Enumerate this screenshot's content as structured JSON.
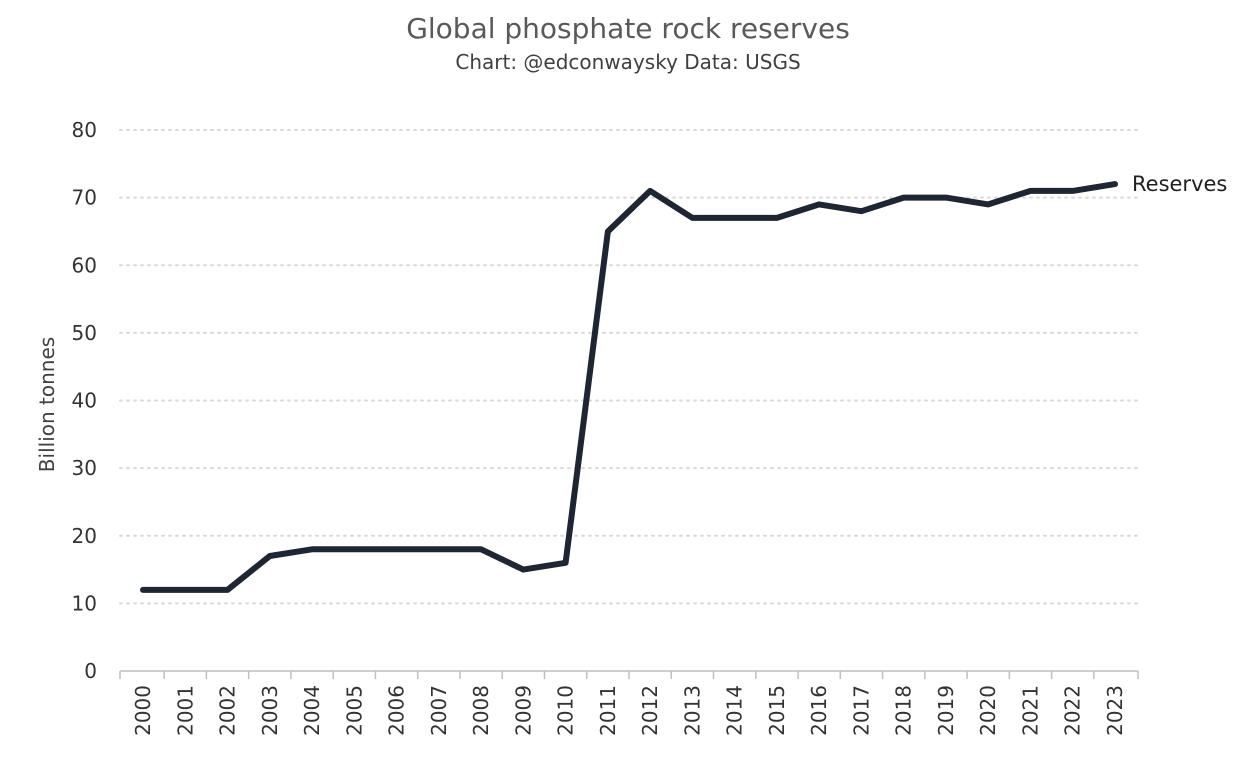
{
  "chart_data": {
    "type": "line",
    "title": "Global phosphate rock reserves",
    "subtitle": "Chart: @edconwaysky Data: USGS",
    "xlabel": "",
    "ylabel": "Billion tonnes",
    "ylim": [
      0,
      80
    ],
    "yticks": [
      0,
      10,
      20,
      30,
      40,
      50,
      60,
      70,
      80
    ],
    "grid": true,
    "legend": "none",
    "x": [
      "2000",
      "2001",
      "2002",
      "2003",
      "2004",
      "2005",
      "2006",
      "2007",
      "2008",
      "2009",
      "2010",
      "2011",
      "2012",
      "2013",
      "2014",
      "2015",
      "2016",
      "2017",
      "2018",
      "2019",
      "2020",
      "2021",
      "2022",
      "2023"
    ],
    "series": [
      {
        "name": "Reserves",
        "color": "#1f2633",
        "values": [
          12,
          12,
          12,
          17,
          18,
          18,
          18,
          18,
          18,
          15,
          16,
          65,
          71,
          67,
          67,
          67,
          69,
          68,
          70,
          70,
          69,
          71,
          71,
          72
        ]
      }
    ],
    "colors": {
      "grid": "#d9d9d9",
      "axis": "#bfbfbf",
      "line": "#1f2633"
    }
  }
}
